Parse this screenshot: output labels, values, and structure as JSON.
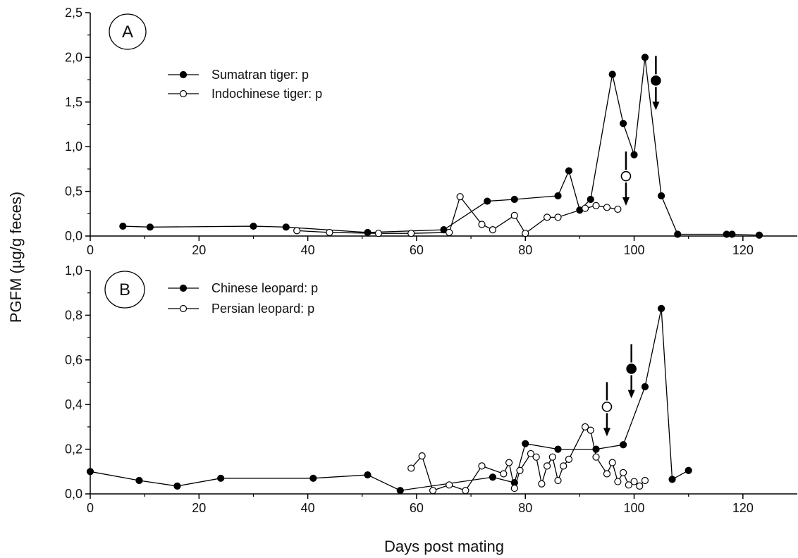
{
  "figure": {
    "ylabel": "PGFM (µg/g feces)",
    "xlabel": "Days post mating"
  },
  "chart_data": [
    {
      "type": "line",
      "panel_label": "A",
      "xlim": [
        0,
        130
      ],
      "ylim": [
        0,
        2.5
      ],
      "xticks": [
        "0",
        "20",
        "40",
        "60",
        "80",
        "100",
        "120"
      ],
      "yticks": [
        "0,0",
        "0,5",
        "1,0",
        "1,5",
        "2,0",
        "2,5"
      ],
      "grid": false,
      "legend_position": "upper-left",
      "series": [
        {
          "name": "Sumatran tiger: p",
          "marker": "filled-circle",
          "x": [
            6,
            11,
            30,
            36,
            51,
            65,
            73,
            78,
            86,
            88,
            90,
            92,
            96,
            98,
            100,
            102,
            105,
            108,
            117,
            118,
            123
          ],
          "y": [
            0.11,
            0.1,
            0.11,
            0.1,
            0.04,
            0.07,
            0.39,
            0.41,
            0.45,
            0.73,
            0.29,
            0.41,
            1.81,
            1.26,
            0.91,
            2.0,
            0.45,
            0.02,
            0.02,
            0.02,
            0.01
          ]
        },
        {
          "name": "Indochinese tiger: p",
          "marker": "open-circle",
          "x": [
            38,
            44,
            53,
            59,
            66,
            68,
            72,
            74,
            78,
            80,
            84,
            86,
            91,
            93,
            95,
            97
          ],
          "y": [
            0.06,
            0.04,
            0.03,
            0.03,
            0.04,
            0.44,
            0.13,
            0.07,
            0.23,
            0.03,
            0.21,
            0.21,
            0.31,
            0.34,
            0.32,
            0.3
          ]
        }
      ],
      "arrow_markers": [
        {
          "x": 104,
          "y": 1.74,
          "style": "filled-circle"
        },
        {
          "x": 98.5,
          "y": 0.67,
          "style": "open-circle"
        }
      ]
    },
    {
      "type": "line",
      "panel_label": "B",
      "xlim": [
        0,
        130
      ],
      "ylim": [
        0,
        1.0
      ],
      "xticks": [
        "0",
        "20",
        "40",
        "60",
        "80",
        "100",
        "120"
      ],
      "yticks": [
        "0,0",
        "0,2",
        "0,4",
        "0,6",
        "0,8",
        "1,0"
      ],
      "grid": false,
      "legend_position": "upper-left",
      "series": [
        {
          "name": "Chinese leopard: p",
          "marker": "filled-circle",
          "x": [
            0,
            9,
            16,
            24,
            41,
            51,
            57,
            74,
            78,
            80,
            86,
            93,
            98,
            102,
            105,
            107,
            110
          ],
          "y": [
            0.1,
            0.06,
            0.035,
            0.07,
            0.07,
            0.085,
            0.015,
            0.075,
            0.05,
            0.225,
            0.2,
            0.2,
            0.22,
            0.48,
            0.83,
            0.065,
            0.105
          ]
        },
        {
          "name": "Persian leopard: p",
          "marker": "open-circle",
          "x": [
            59,
            61,
            63,
            66,
            69,
            72,
            76,
            77,
            78,
            79,
            81,
            82,
            83,
            84,
            85,
            86,
            87,
            88,
            91,
            92,
            93,
            95,
            96,
            97,
            98,
            99,
            100,
            101,
            102
          ],
          "y": [
            0.115,
            0.17,
            0.015,
            0.04,
            0.015,
            0.125,
            0.09,
            0.14,
            0.025,
            0.105,
            0.18,
            0.165,
            0.045,
            0.125,
            0.165,
            0.06,
            0.125,
            0.155,
            0.3,
            0.285,
            0.165,
            0.09,
            0.14,
            0.055,
            0.095,
            0.04,
            0.055,
            0.035,
            0.06
          ]
        }
      ],
      "arrow_markers": [
        {
          "x": 99.5,
          "y": 0.56,
          "style": "filled-circle"
        },
        {
          "x": 95,
          "y": 0.39,
          "style": "open-circle"
        }
      ]
    }
  ]
}
